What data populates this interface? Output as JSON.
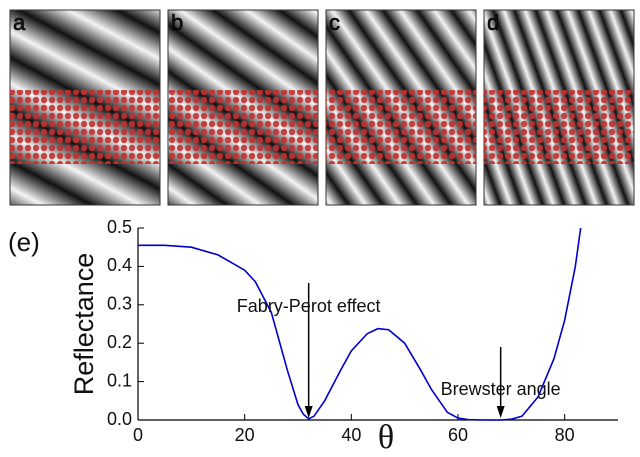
{
  "panels": {
    "labels": [
      "a",
      "b",
      "c",
      "d"
    ]
  },
  "chart_data": {
    "type": "line",
    "label": "(e)",
    "ylabel": "Reflectance",
    "xlabel": "θ",
    "x": [
      0,
      5,
      10,
      15,
      20,
      22,
      25,
      28,
      30,
      31,
      32,
      33,
      35,
      38,
      40,
      43,
      45,
      47,
      50,
      53,
      55,
      58,
      60,
      62,
      65,
      68,
      70,
      72,
      75,
      78,
      80,
      82,
      83
    ],
    "series": [
      {
        "name": "Reflectance",
        "color": "#0000cc",
        "values": [
          0.455,
          0.455,
          0.45,
          0.43,
          0.39,
          0.36,
          0.28,
          0.13,
          0.04,
          0.015,
          0.003,
          0.01,
          0.05,
          0.13,
          0.18,
          0.225,
          0.238,
          0.235,
          0.2,
          0.13,
          0.08,
          0.02,
          0.005,
          0.001,
          0.0,
          0.0,
          0.002,
          0.01,
          0.06,
          0.16,
          0.26,
          0.4,
          0.5
        ]
      }
    ],
    "xlim": [
      0,
      90
    ],
    "ylim": [
      0,
      0.5
    ],
    "xticks": [
      0,
      20,
      40,
      60,
      80
    ],
    "yticks": [
      {
        "value": 0,
        "label": "0.0"
      },
      0.1,
      0.2,
      0.3,
      0.4,
      0.5
    ],
    "annotations": [
      {
        "text": "Fabry-Perot effect",
        "x": 32
      },
      {
        "text": "Brewster angle",
        "x": 68
      }
    ]
  }
}
